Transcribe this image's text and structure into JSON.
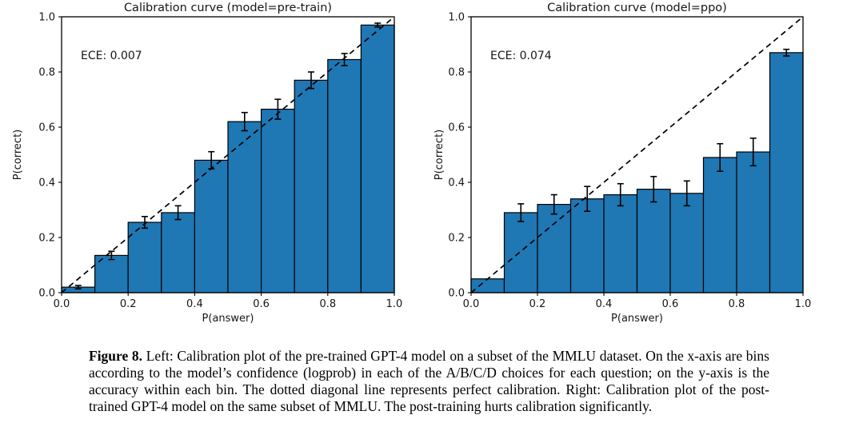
{
  "figure": {
    "caption_label": "Figure 8.",
    "caption_text": "Left: Calibration plot of the pre-trained GPT-4 model on a subset of the MMLU dataset. On the x-axis are bins according to the model’s confidence (logprob) in each of the A/B/C/D choices for each question; on the y-axis is the accuracy within each bin. The dotted diagonal line represents perfect calibration. Right: Calibration plot of the post-trained GPT-4 model on the same subset of MMLU. The post-training hurts calibration significantly."
  },
  "chart_data": [
    {
      "type": "bar",
      "title": "Calibration curve (model=pre-train)",
      "annotation": "ECE: 0.007",
      "xlabel": "P(answer)",
      "ylabel": "P(correct)",
      "xlim": [
        0.0,
        1.0
      ],
      "ylim": [
        0.0,
        1.0
      ],
      "grid": false,
      "bin_edges": [
        0.0,
        0.1,
        0.2,
        0.3,
        0.4,
        0.5,
        0.6,
        0.7,
        0.8,
        0.9,
        1.0
      ],
      "values": [
        0.02,
        0.135,
        0.255,
        0.29,
        0.48,
        0.62,
        0.665,
        0.77,
        0.845,
        0.97
      ],
      "errors": [
        0.006,
        0.015,
        0.021,
        0.025,
        0.031,
        0.033,
        0.036,
        0.03,
        0.022,
        0.007
      ],
      "xticks": [
        "0.0",
        "0.2",
        "0.4",
        "0.6",
        "0.8",
        "1.0"
      ],
      "yticks": [
        "0.0",
        "0.2",
        "0.4",
        "0.6",
        "0.8",
        "1.0"
      ],
      "bar_color": "#1f77b4",
      "bar_edge_color": "#000000",
      "diagonal": {
        "style": "dashed",
        "from": [
          0,
          0
        ],
        "to": [
          1,
          1
        ],
        "color": "#000000",
        "meaning": "perfect calibration"
      }
    },
    {
      "type": "bar",
      "title": "Calibration curve (model=ppo)",
      "annotation": "ECE: 0.074",
      "xlabel": "P(answer)",
      "ylabel": "P(correct)",
      "xlim": [
        0.0,
        1.0
      ],
      "ylim": [
        0.0,
        1.0
      ],
      "grid": false,
      "bin_edges": [
        0.0,
        0.1,
        0.2,
        0.3,
        0.4,
        0.5,
        0.6,
        0.7,
        0.8,
        0.9,
        1.0
      ],
      "values": [
        0.05,
        0.29,
        0.32,
        0.34,
        0.355,
        0.375,
        0.36,
        0.49,
        0.51,
        0.87
      ],
      "errors": [
        0,
        0.032,
        0.035,
        0.045,
        0.04,
        0.046,
        0.045,
        0.05,
        0.05,
        0.012
      ],
      "xticks": [
        "0.0",
        "0.2",
        "0.4",
        "0.6",
        "0.8",
        "1.0"
      ],
      "yticks": [
        "0.0",
        "0.2",
        "0.4",
        "0.6",
        "0.8",
        "1.0"
      ],
      "bar_color": "#1f77b4",
      "bar_edge_color": "#000000",
      "diagonal": {
        "style": "dashed",
        "from": [
          0,
          0
        ],
        "to": [
          1,
          1
        ],
        "color": "#000000",
        "meaning": "perfect calibration"
      }
    }
  ]
}
